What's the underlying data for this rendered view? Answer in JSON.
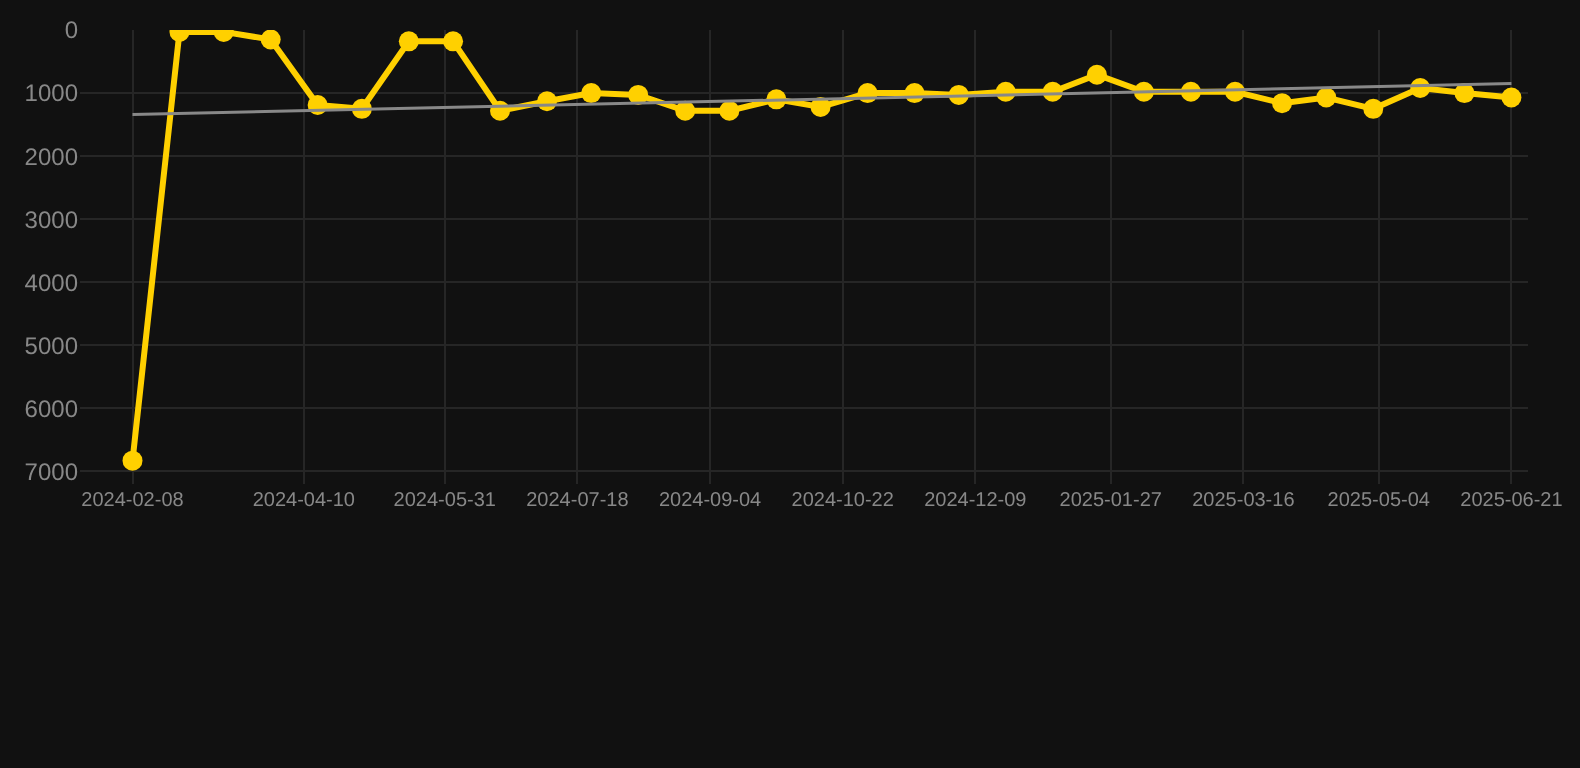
{
  "chart_data": {
    "type": "line",
    "x": [
      "2024-02-08",
      "2024-02-25",
      "2024-03-12",
      "2024-03-29",
      "2024-04-15",
      "2024-05-01",
      "2024-05-18",
      "2024-06-03",
      "2024-06-20",
      "2024-07-07",
      "2024-07-23",
      "2024-08-09",
      "2024-08-26",
      "2024-09-11",
      "2024-09-28",
      "2024-10-14",
      "2024-10-31",
      "2024-11-17",
      "2024-12-03",
      "2024-12-20",
      "2025-01-06",
      "2025-01-22",
      "2025-02-08",
      "2025-02-25",
      "2025-03-13",
      "2025-03-30",
      "2025-04-15",
      "2025-05-02",
      "2025-05-19",
      "2025-06-04",
      "2025-06-21"
    ],
    "series": [
      {
        "color": "#ffd000",
        "marker": "circle",
        "values": [
          6830,
          30,
          30,
          150,
          1190,
          1250,
          180,
          180,
          1280,
          1130,
          1000,
          1030,
          1280,
          1280,
          1100,
          1220,
          1000,
          1000,
          1030,
          980,
          980,
          710,
          980,
          980,
          980,
          1160,
          1070,
          1250,
          920,
          1000,
          1070
        ]
      },
      {
        "type": "line",
        "color": "#888888",
        "marker": "none",
        "x": [
          "2024-02-08",
          "2025-06-21"
        ],
        "values": [
          1340,
          850
        ]
      }
    ],
    "xlim": [
      "2024-01-20",
      "2025-06-27"
    ],
    "xticks": [
      "2024-02-08",
      "2024-04-10",
      "2024-05-31",
      "2024-07-18",
      "2024-09-04",
      "2024-10-22",
      "2024-12-09",
      "2025-01-27",
      "2025-03-16",
      "2025-05-04",
      "2025-06-21"
    ],
    "ylim": [
      7200,
      0
    ],
    "yticks": [
      0,
      1000,
      2000,
      3000,
      4000,
      5000,
      6000,
      7000
    ],
    "grid": true
  }
}
